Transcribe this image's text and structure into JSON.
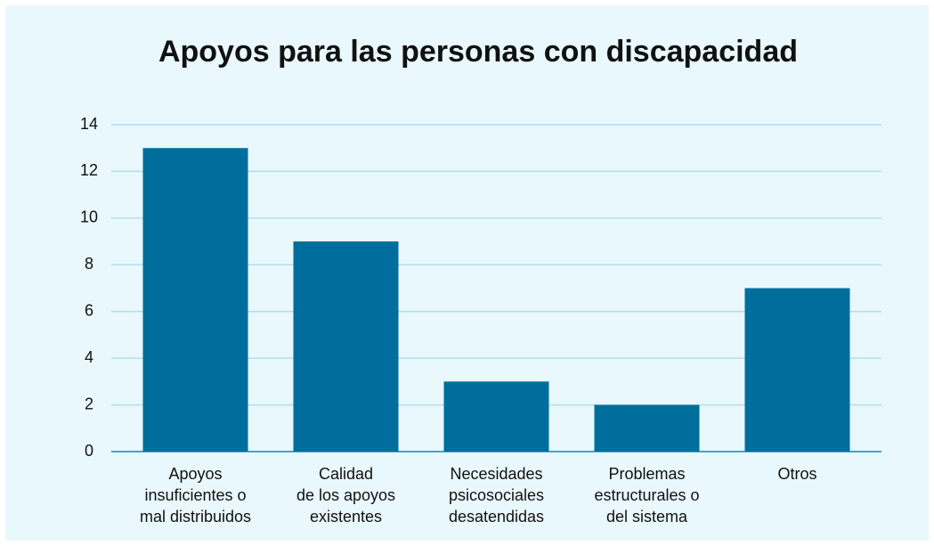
{
  "chart_data": {
    "type": "bar",
    "title": "Apoyos para las personas con discapacidad",
    "categories": [
      "Apoyos\ninsuficientes o\nmal distribuidos",
      "Calidad\nde los apoyos\nexistentes",
      "Necesidades\npsicosociales\ndesatendidas",
      "Problemas\nestructurales o\ndel sistema",
      "Otros"
    ],
    "values": [
      13,
      9,
      3,
      2,
      7
    ],
    "color": "#006e9c",
    "ylim": [
      0,
      14
    ],
    "yticks": [
      0,
      2,
      4,
      6,
      8,
      10,
      12,
      14
    ],
    "grid": true
  }
}
